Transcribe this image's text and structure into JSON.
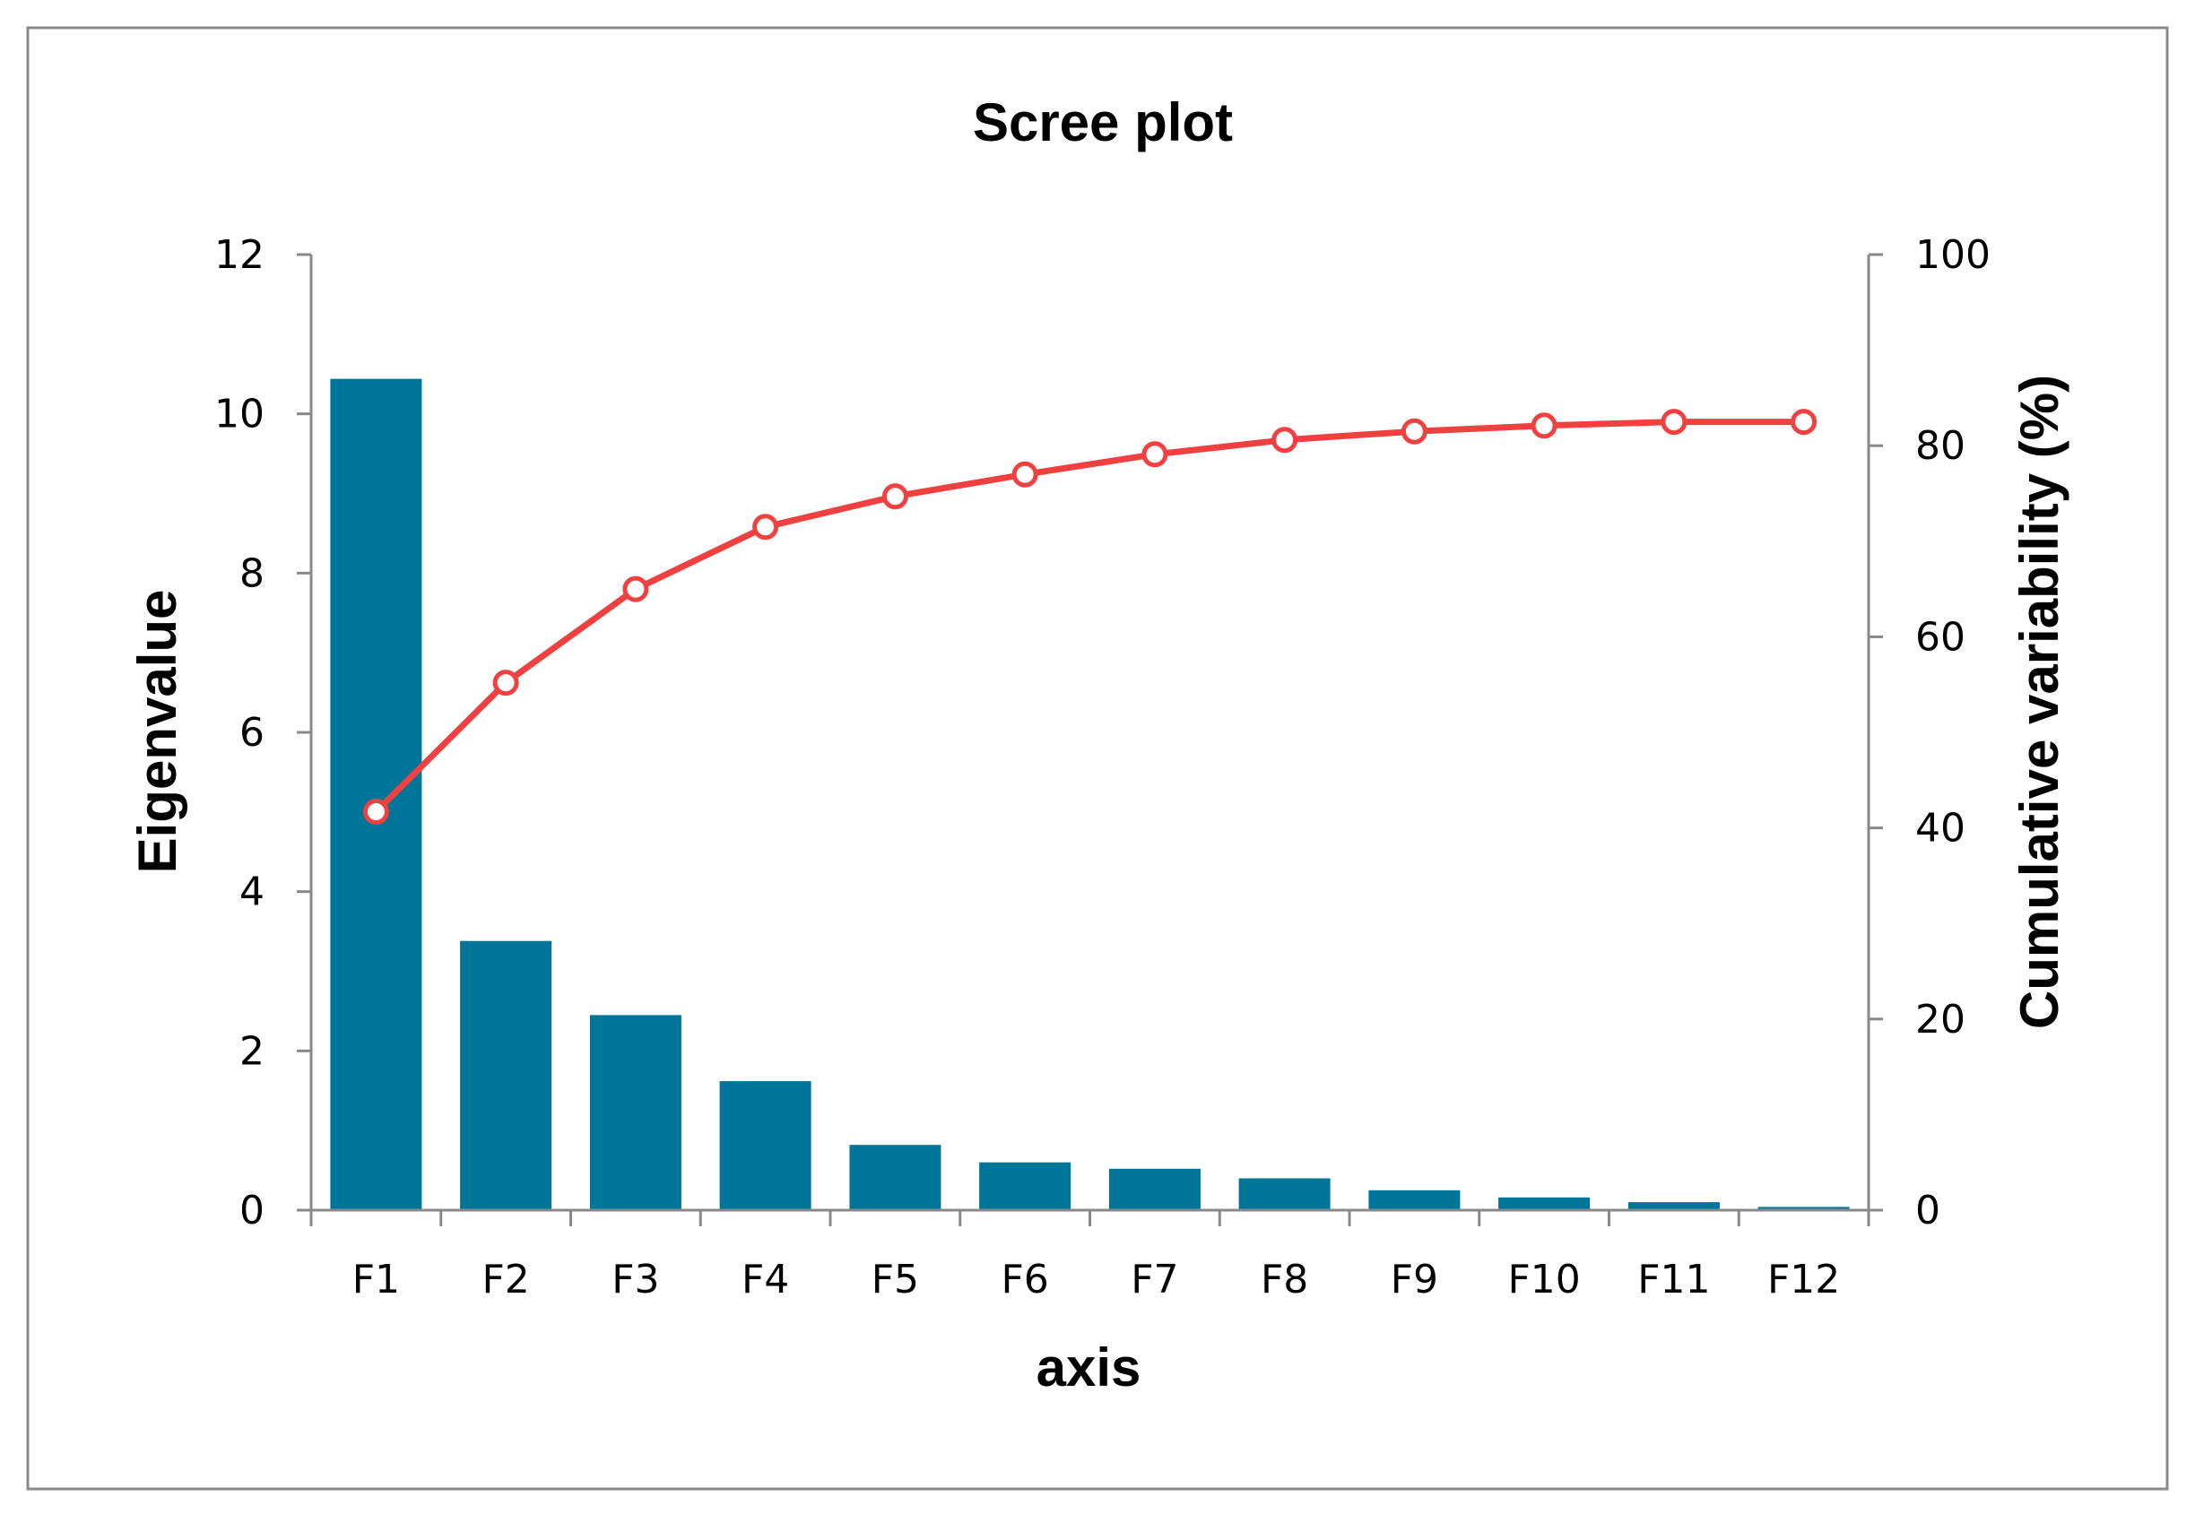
{
  "chart_data": {
    "type": "bar",
    "title": "Scree plot",
    "xlabel": "axis",
    "ylabel": "Eigenvalue",
    "y2label": "Cumulative variability (%)",
    "categories": [
      "F1",
      "F2",
      "F3",
      "F4",
      "F5",
      "F6",
      "F7",
      "F8",
      "F9",
      "F10",
      "F11",
      "F12"
    ],
    "series": [
      {
        "name": "Eigenvalue",
        "type": "bar",
        "axis": "left",
        "color": "#00759A",
        "values": [
          10.44,
          3.38,
          2.45,
          1.62,
          0.82,
          0.6,
          0.52,
          0.4,
          0.25,
          0.16,
          0.1,
          0.04
        ]
      },
      {
        "name": "Cumulative variability (%)",
        "type": "line",
        "axis": "right",
        "color": "#F04040",
        "values": [
          41.7,
          55.2,
          65.0,
          71.5,
          74.7,
          77.0,
          79.1,
          80.6,
          81.5,
          82.1,
          82.5,
          82.5
        ]
      }
    ],
    "ylim": [
      0,
      12
    ],
    "y2lim": [
      0,
      100
    ],
    "yticks": [
      "0",
      "2",
      "4",
      "6",
      "8",
      "10",
      "12"
    ],
    "y2ticks": [
      "0",
      "20",
      "40",
      "60",
      "80",
      "100"
    ],
    "grid": false,
    "legend": "none"
  }
}
